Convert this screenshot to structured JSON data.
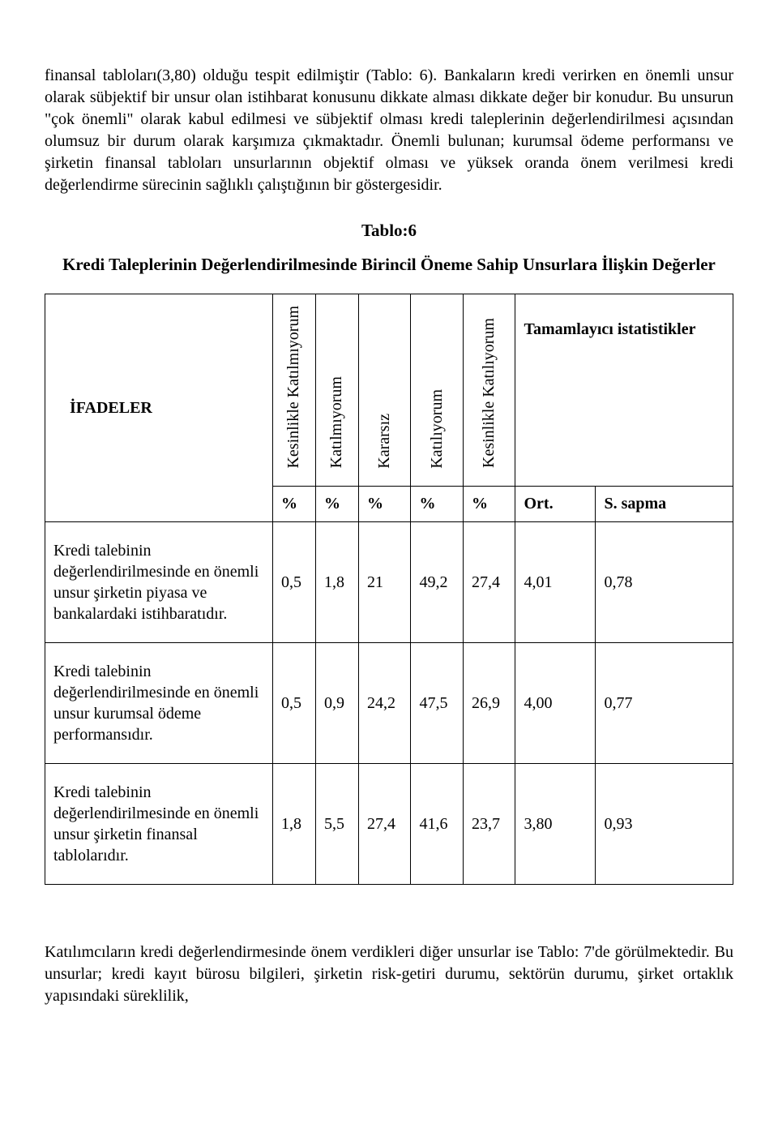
{
  "paragraph1": "finansal tabloları(3,80) olduğu tespit edilmiştir (Tablo: 6). Bankaların kredi verirken en önemli unsur olarak sübjektif bir unsur olan istihbarat konusunu dikkate alması dikkate değer bir konudur. Bu unsurun \"çok önemli\" olarak kabul edilmesi ve sübjektif olması kredi taleplerinin değerlendirilmesi açısından olumsuz bir durum olarak karşımıza çıkmaktadır. Önemli bulunan; kurumsal ödeme performansı ve şirketin finansal tabloları unsurlarının objektif olması ve yüksek oranda önem verilmesi kredi değerlendirme sürecinin sağlıklı çalıştığının bir göstergesidir.",
  "tableNumber": "Tablo:6",
  "tableTitle": "Kredi Taleplerinin Değerlendirilmesinde Birincil Öneme Sahip Unsurlara İlişkin Değerler",
  "headers": {
    "ifade": "İFADELER",
    "c1": "Kesinlikle Katılmıyorum",
    "c2": "Katılmıyorum",
    "c3": "Kararsız",
    "c4": "Katılıyorum",
    "c5": "Kesinlikle Katılıyorum",
    "stats": "Tamamlayıcı istatistikler",
    "pct": "%",
    "ort": "Ort.",
    "ssapma": "S. sapma"
  },
  "rows": [
    {
      "label": "Kredi talebinin değerlendirilmesinde en önemli unsur şirketin piyasa ve bankalardaki istihbaratıdır.",
      "v": [
        "0,5",
        "1,8",
        "21",
        "49,2",
        "27,4",
        "4,01",
        "0,78"
      ]
    },
    {
      "label": "Kredi talebinin değerlendirilmesinde en önemli unsur kurumsal ödeme performansıdır.",
      "v": [
        "0,5",
        "0,9",
        "24,2",
        "47,5",
        "26,9",
        "4,00",
        "0,77"
      ]
    },
    {
      "label": "Kredi talebinin değerlendirilmesinde en önemli unsur şirketin finansal tablolarıdır.",
      "v": [
        "1,8",
        "5,5",
        "27,4",
        "41,6",
        "23,7",
        "3,80",
        "0,93"
      ]
    }
  ],
  "paragraph2": "Katılımcıların kredi değerlendirmesinde önem verdikleri diğer unsurlar ise Tablo: 7'de görülmektedir. Bu unsurlar; kredi kayıt bürosu bilgileri, şirketin risk-getiri durumu, sektörün durumu, şirket ortaklık yapısındaki süreklilik,"
}
